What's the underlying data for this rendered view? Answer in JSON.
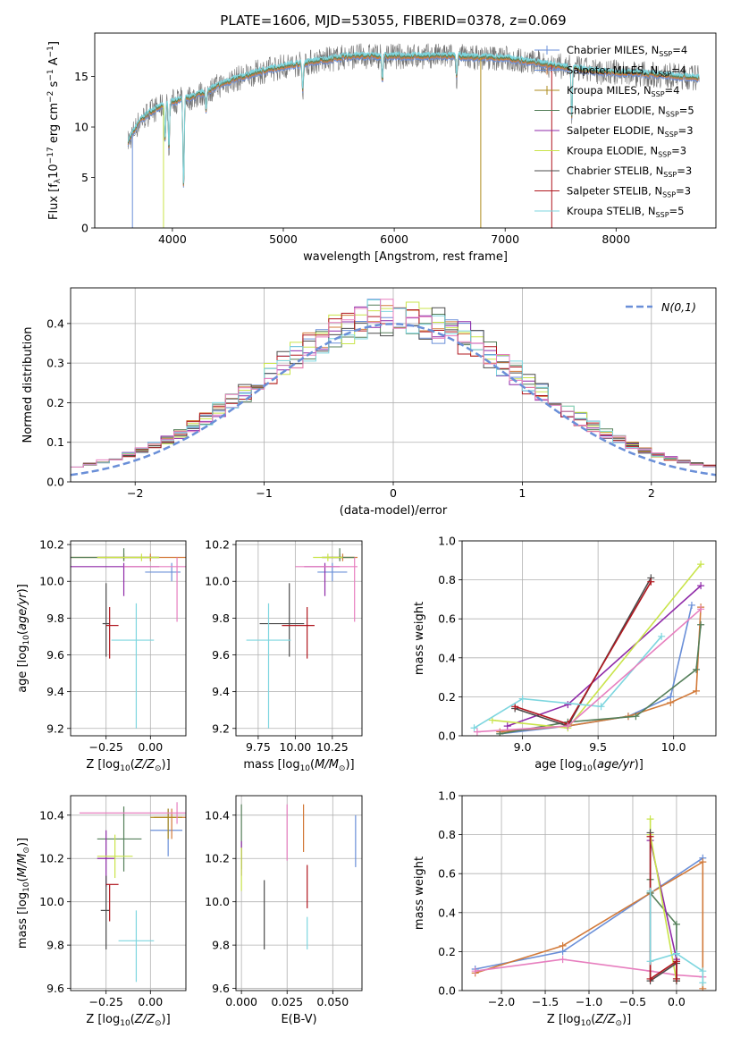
{
  "figure_title": "PLATE=1606, MJD=53055, FIBERID=0378, z=0.069",
  "colors": [
    "#6a8fd8",
    "#d27a3a",
    "#ae8b1c",
    "#557f5a",
    "#8f2aa8",
    "#c9e44a",
    "#4b4b4b",
    "#b0171f",
    "#7ed6df"
  ],
  "chart_data": [
    {
      "id": "spectrum",
      "type": "line",
      "xlabel": "wavelength [Angstrom, rest frame]",
      "ylabel": "Flux [f_λ10^-17 erg cm^-2 s^-1 A^-1]",
      "xlim": [
        3300,
        8900
      ],
      "ylim": [
        0,
        19.3
      ],
      "xticks": [
        4000,
        5000,
        6000,
        7000,
        8000
      ],
      "yticks": [
        0,
        5,
        10,
        15
      ],
      "grid": false,
      "legend_position": "right",
      "legend": [
        {
          "name": "Chabrier MILES, N",
          "ssp": "4"
        },
        {
          "name": "Salpeter MILES, N",
          "ssp": "4"
        },
        {
          "name": "Kroupa MILES, N",
          "ssp": "4"
        },
        {
          "name": "Chabrier ELODIE, N",
          "ssp": "5"
        },
        {
          "name": "Salpeter ELODIE, N",
          "ssp": "3"
        },
        {
          "name": "Kroupa ELODIE, N",
          "ssp": "3"
        },
        {
          "name": "Chabrier STELIB, N",
          "ssp": "3"
        },
        {
          "name": "Salpeter STELIB, N",
          "ssp": "3"
        },
        {
          "name": "Kroupa STELIB, N",
          "ssp": "5"
        }
      ],
      "continuum": [
        [
          3600,
          8.5
        ],
        [
          3700,
          10.5
        ],
        [
          3800,
          11.5
        ],
        [
          3900,
          12
        ],
        [
          4000,
          12.5
        ],
        [
          4200,
          13
        ],
        [
          4500,
          14.5
        ],
        [
          4800,
          15.5
        ],
        [
          5000,
          16
        ],
        [
          5300,
          16.5
        ],
        [
          5600,
          17
        ],
        [
          6000,
          17
        ],
        [
          6500,
          17
        ],
        [
          7000,
          16.8
        ],
        [
          7500,
          16
        ],
        [
          7800,
          15.5
        ],
        [
          8200,
          15.3
        ],
        [
          8800,
          14.8
        ]
      ],
      "absorption_lines": [
        [
          3934,
          8.8
        ],
        [
          3969,
          8
        ],
        [
          4101,
          4
        ],
        [
          4304,
          11.5
        ],
        [
          5175,
          13.5
        ],
        [
          5893,
          14.5
        ],
        [
          6563,
          15
        ],
        [
          7600,
          11
        ]
      ],
      "spikes": [
        [
          3640,
          0
        ],
        [
          3920,
          0
        ],
        [
          6780,
          0
        ],
        [
          7420,
          0
        ]
      ],
      "sdss_spectrum_start": 3600,
      "sdss_spectrum_end": 8750
    },
    {
      "id": "residuals",
      "type": "histogram",
      "xlabel": "(data-model)/error",
      "ylabel": "Normed distribution",
      "xlim": [
        -2.5,
        2.5
      ],
      "ylim": [
        0,
        0.49
      ],
      "xticks": [
        -2,
        -1,
        0,
        1,
        2
      ],
      "yticks": [
        0.0,
        0.1,
        0.2,
        0.3,
        0.4
      ],
      "grid": true,
      "legend_position": "top-right",
      "legend_label": "N(0,1)",
      "bin_width": 0.1,
      "bin_start": -2.5,
      "reference_curve": "standard normal"
    },
    {
      "id": "age_vs_Z",
      "type": "scatter",
      "xlabel": "Z [log10(Z/Z⊙)]",
      "ylabel": "age  [log10(age/yr)]",
      "xlim": [
        -0.45,
        0.2
      ],
      "ylim": [
        9.16,
        10.22
      ],
      "xticks": [
        -0.25,
        0.0
      ],
      "yticks": [
        9.2,
        9.4,
        9.6,
        9.8,
        10.0,
        10.2
      ],
      "grid": true,
      "points": [
        {
          "s": 0,
          "x": 0.12,
          "xerr": [
            0.15,
            0.05
          ],
          "y": 10.05,
          "yerr": [
            0.05,
            0.05
          ]
        },
        {
          "s": 1,
          "x": 0.0,
          "xerr": [
            0.3,
            0.2
          ],
          "y": 10.13,
          "yerr": [
            0.02,
            0.02
          ]
        },
        {
          "s": 2,
          "x": -0.15,
          "xerr": [
            0.3,
            0.2
          ],
          "y": 10.13,
          "yerr": [
            0.02,
            0.02
          ]
        },
        {
          "s": 3,
          "x": -0.15,
          "xerr": [
            0.3,
            0.2
          ],
          "y": 10.13,
          "yerr": [
            0.02,
            0.05
          ]
        },
        {
          "s": 4,
          "x": -0.15,
          "xerr": [
            0.3,
            0.2
          ],
          "y": 10.08,
          "yerr": [
            0.16,
            0.02
          ]
        },
        {
          "s": 5,
          "x": -0.05,
          "xerr": [
            0.25,
            0.1
          ],
          "y": 10.13,
          "yerr": [
            0.02,
            0.02
          ]
        },
        {
          "s": 6,
          "x": -0.25,
          "xerr": [
            0.02,
            0.02
          ],
          "y": 9.77,
          "yerr": [
            0.18,
            0.22
          ]
        },
        {
          "s": 7,
          "x": -0.23,
          "xerr": [
            0.02,
            0.05
          ],
          "y": 9.76,
          "yerr": [
            0.18,
            0.1
          ]
        },
        {
          "s": 8,
          "x": -0.08,
          "xerr": [
            0.14,
            0.1
          ],
          "y": 9.68,
          "yerr": [
            0.48,
            0.2
          ]
        },
        {
          "s": 9,
          "x": 0.15,
          "xerr": [
            0.3,
            0.05
          ],
          "y": 10.08,
          "yerr": [
            0.3,
            0.05
          ]
        }
      ]
    },
    {
      "id": "age_vs_mass",
      "type": "scatter",
      "xlabel": "mass [log10(M/M⊙)]",
      "ylabel": "",
      "xlim": [
        9.6,
        10.45
      ],
      "ylim": [
        9.16,
        10.22
      ],
      "xticks": [
        9.75,
        10.0,
        10.25
      ],
      "yticks": [
        9.2,
        9.4,
        9.6,
        9.8,
        10.0,
        10.2
      ],
      "grid": true,
      "points": [
        {
          "s": 0,
          "x": 10.25,
          "xerr": [
            0.1,
            0.1
          ],
          "y": 10.05,
          "yerr": [
            0.05,
            0.05
          ]
        },
        {
          "s": 1,
          "x": 10.32,
          "xerr": [
            0.1,
            0.1
          ],
          "y": 10.13,
          "yerr": [
            0.02,
            0.02
          ]
        },
        {
          "s": 2,
          "x": 10.3,
          "xerr": [
            0.12,
            0.1
          ],
          "y": 10.13,
          "yerr": [
            0.02,
            0.02
          ]
        },
        {
          "s": 3,
          "x": 10.3,
          "xerr": [
            0.12,
            0.1
          ],
          "y": 10.13,
          "yerr": [
            0.02,
            0.05
          ]
        },
        {
          "s": 4,
          "x": 10.2,
          "xerr": [
            0.14,
            0.1
          ],
          "y": 10.08,
          "yerr": [
            0.16,
            0.02
          ]
        },
        {
          "s": 5,
          "x": 10.22,
          "xerr": [
            0.1,
            0.1
          ],
          "y": 10.13,
          "yerr": [
            0.02,
            0.02
          ]
        },
        {
          "s": 6,
          "x": 9.96,
          "xerr": [
            0.2,
            0.1
          ],
          "y": 9.77,
          "yerr": [
            0.18,
            0.22
          ]
        },
        {
          "s": 7,
          "x": 10.08,
          "xerr": [
            0.17,
            0.05
          ],
          "y": 9.76,
          "yerr": [
            0.18,
            0.1
          ]
        },
        {
          "s": 8,
          "x": 9.82,
          "xerr": [
            0.15,
            0.15
          ],
          "y": 9.68,
          "yerr": [
            0.48,
            0.2
          ]
        },
        {
          "s": 9,
          "x": 10.4,
          "xerr": [
            0.4,
            0.02
          ],
          "y": 10.08,
          "yerr": [
            0.3,
            0.05
          ]
        }
      ]
    },
    {
      "id": "mass_weight_vs_age",
      "type": "line",
      "xlabel": "age  [log10(age/yr)]",
      "ylabel": "mass weight",
      "xlim": [
        8.6,
        10.28
      ],
      "ylim": [
        0,
        1.0
      ],
      "xticks": [
        9.0,
        9.5,
        10.0
      ],
      "yticks": [
        0.0,
        0.2,
        0.4,
        0.6,
        0.8,
        1.0
      ],
      "grid": true,
      "series": [
        {
          "s": 0,
          "x": [
            8.85,
            9.3,
            9.7,
            9.98,
            10.12
          ],
          "y": [
            0.01,
            0.05,
            0.1,
            0.2,
            0.67
          ]
        },
        {
          "s": 1,
          "x": [
            8.85,
            9.3,
            9.7,
            9.98,
            10.15,
            10.18
          ],
          "y": [
            0.02,
            0.05,
            0.1,
            0.17,
            0.23,
            0.66
          ]
        },
        {
          "s": 3,
          "x": [
            8.85,
            9.3,
            9.75,
            10.15,
            10.18
          ],
          "y": [
            0.01,
            0.07,
            0.1,
            0.34,
            0.57
          ]
        },
        {
          "s": 4,
          "x": [
            8.9,
            9.3,
            10.18
          ],
          "y": [
            0.05,
            0.16,
            0.77
          ]
        },
        {
          "s": 5,
          "x": [
            8.8,
            9.3,
            10.18
          ],
          "y": [
            0.08,
            0.04,
            0.88
          ]
        },
        {
          "s": 6,
          "x": [
            8.95,
            9.3,
            9.85
          ],
          "y": [
            0.14,
            0.05,
            0.81
          ]
        },
        {
          "s": 7,
          "x": [
            8.95,
            9.3,
            9.85
          ],
          "y": [
            0.15,
            0.06,
            0.79
          ]
        },
        {
          "s": 8,
          "x": [
            8.68,
            9.0,
            9.52,
            9.92
          ],
          "y": [
            0.04,
            0.19,
            0.15,
            0.51
          ]
        },
        {
          "s": 9,
          "x": [
            8.7,
            9.3,
            10.18
          ],
          "y": [
            0.02,
            0.05,
            0.65
          ]
        }
      ]
    },
    {
      "id": "mass_vs_Z",
      "type": "scatter",
      "xlabel": "Z [log10(Z/Z⊙)]",
      "ylabel": "mass [log10(M/M⊙)]",
      "xlim": [
        -0.45,
        0.2
      ],
      "ylim": [
        9.59,
        10.49
      ],
      "xticks": [
        -0.25,
        0.0
      ],
      "yticks": [
        9.6,
        9.8,
        10.0,
        10.2,
        10.4
      ],
      "grid": true,
      "points": [
        {
          "s": 0,
          "x": 0.1,
          "xerr": [
            0.1,
            0.08
          ],
          "y": 10.33,
          "yerr": [
            0.12,
            0.1
          ]
        },
        {
          "s": 1,
          "x": 0.12,
          "xerr": [
            0.1,
            0.08
          ],
          "y": 10.39,
          "yerr": [
            0.1,
            0.04
          ]
        },
        {
          "s": 2,
          "x": 0.1,
          "xerr": [
            0.1,
            0.08
          ],
          "y": 10.39,
          "yerr": [
            0.1,
            0.04
          ]
        },
        {
          "s": 3,
          "x": -0.15,
          "xerr": [
            0.15,
            0.1
          ],
          "y": 10.29,
          "yerr": [
            0.15,
            0.15
          ]
        },
        {
          "s": 4,
          "x": -0.25,
          "xerr": [
            0.05,
            0.05
          ],
          "y": 10.2,
          "yerr": [
            0.13,
            0.13
          ]
        },
        {
          "s": 5,
          "x": -0.2,
          "xerr": [
            0.1,
            0.1
          ],
          "y": 10.21,
          "yerr": [
            0.1,
            0.1
          ]
        },
        {
          "s": 6,
          "x": -0.25,
          "xerr": [
            0.03,
            0.02
          ],
          "y": 9.96,
          "yerr": [
            0.18,
            0.16
          ]
        },
        {
          "s": 7,
          "x": -0.23,
          "xerr": [
            0.02,
            0.05
          ],
          "y": 10.08,
          "yerr": [
            0.17,
            0.0
          ]
        },
        {
          "s": 8,
          "x": -0.08,
          "xerr": [
            0.1,
            0.1
          ],
          "y": 9.82,
          "yerr": [
            0.19,
            0.14
          ]
        },
        {
          "s": 9,
          "x": 0.15,
          "xerr": [
            0.55,
            0.05
          ],
          "y": 10.41,
          "yerr": [
            0.05,
            0.05
          ]
        }
      ]
    },
    {
      "id": "mass_vs_ebv",
      "type": "scatter",
      "xlabel": "E(B-V)",
      "ylabel": "",
      "xlim": [
        -0.003,
        0.066
      ],
      "ylim": [
        9.59,
        10.49
      ],
      "xticks": [
        0.0,
        0.025,
        0.05
      ],
      "yticks": [
        9.6,
        9.8,
        10.0,
        10.2,
        10.4
      ],
      "grid": true,
      "points": [
        {
          "s": 0,
          "x": 0.0625,
          "y": 10.28,
          "yerr": [
            0.12,
            0.12
          ]
        },
        {
          "s": 1,
          "x": 0.034,
          "y": 10.33,
          "yerr": [
            0.1,
            0.12
          ]
        },
        {
          "s": 3,
          "x": 0.0,
          "y": 10.3,
          "yerr": [
            0.15,
            0.15
          ]
        },
        {
          "s": 4,
          "x": 0.0,
          "y": 10.2,
          "yerr": [
            0.08,
            0.08
          ]
        },
        {
          "s": 5,
          "x": 0.0,
          "y": 10.15,
          "yerr": [
            0.1,
            0.1
          ]
        },
        {
          "s": 6,
          "x": 0.0125,
          "y": 9.94,
          "yerr": [
            0.16,
            0.16
          ]
        },
        {
          "s": 7,
          "x": 0.036,
          "y": 10.07,
          "yerr": [
            0.1,
            0.1
          ]
        },
        {
          "s": 8,
          "x": 0.036,
          "y": 9.88,
          "yerr": [
            0.1,
            0.05
          ]
        },
        {
          "s": 9,
          "x": 0.025,
          "y": 10.31,
          "yerr": [
            0.12,
            0.14
          ]
        }
      ]
    },
    {
      "id": "mass_weight_vs_Z",
      "type": "line",
      "xlabel": "Z [log10(Z/Z⊙)]",
      "ylabel": "mass weight",
      "xlim": [
        -2.45,
        0.45
      ],
      "ylim": [
        0,
        1.0
      ],
      "xticks": [
        -2.0,
        -1.5,
        -1.0,
        -0.5,
        0.0
      ],
      "yticks": [
        0.0,
        0.2,
        0.4,
        0.6,
        0.8,
        1.0
      ],
      "grid": true,
      "series": [
        {
          "s": 0,
          "x": [
            -2.3,
            -1.3,
            -0.3,
            0.3
          ],
          "y": [
            0.11,
            0.2,
            0.5,
            0.68
          ]
        },
        {
          "s": 1,
          "x": [
            -2.3,
            -1.3,
            -0.3,
            0.3,
            0.3
          ],
          "y": [
            0.09,
            0.23,
            0.5,
            0.66,
            0.01
          ]
        },
        {
          "s": 9,
          "x": [
            -2.3,
            -1.3,
            -0.3,
            0.0,
            0.3
          ],
          "y": [
            0.1,
            0.16,
            0.1,
            0.08,
            0.07
          ]
        },
        {
          "s": 3,
          "x": [
            -0.3,
            -0.3,
            0.0,
            0.0
          ],
          "y": [
            0.57,
            0.5,
            0.34,
            0.06
          ]
        },
        {
          "s": 4,
          "x": [
            -0.3,
            0.0,
            0.0
          ],
          "y": [
            0.77,
            0.16,
            0.05
          ]
        },
        {
          "s": 5,
          "x": [
            -0.3,
            -0.3,
            0.0
          ],
          "y": [
            0.88,
            0.8,
            0.05
          ]
        },
        {
          "s": 6,
          "x": [
            -0.3,
            -0.3,
            0.0,
            0.0
          ],
          "y": [
            0.81,
            0.05,
            0.14,
            0.05
          ]
        },
        {
          "s": 7,
          "x": [
            -0.3,
            -0.3,
            0.0,
            0.0
          ],
          "y": [
            0.79,
            0.06,
            0.15,
            0.06
          ]
        },
        {
          "s": 8,
          "x": [
            -0.3,
            -0.3,
            0.0,
            0.3,
            0.3
          ],
          "y": [
            0.51,
            0.15,
            0.19,
            0.1,
            0.04
          ]
        }
      ]
    }
  ]
}
